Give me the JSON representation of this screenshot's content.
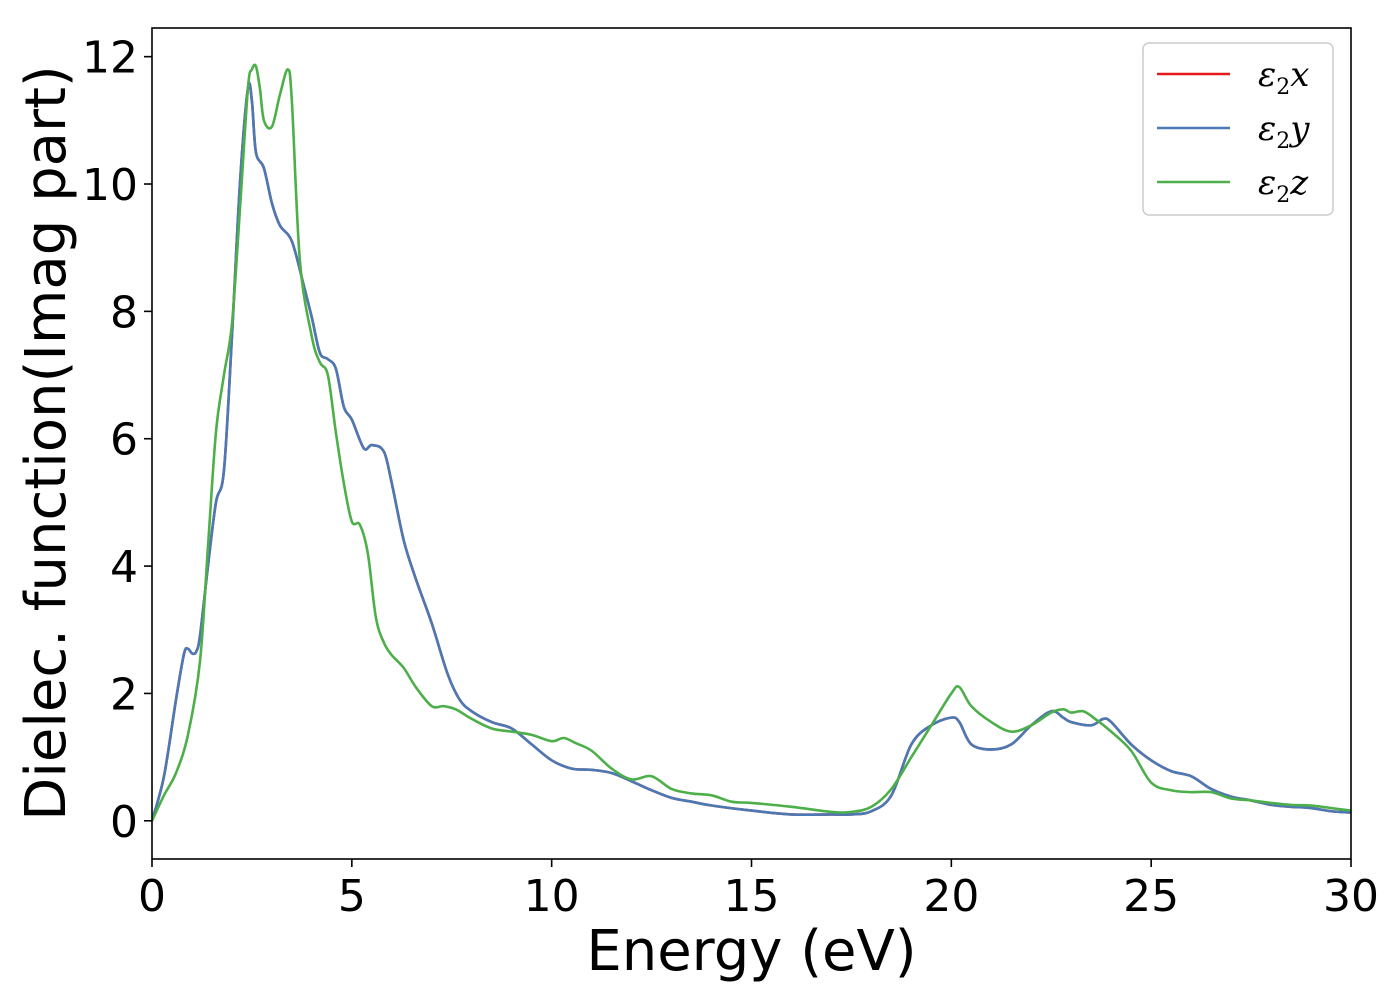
{
  "chart_data": {
    "type": "line",
    "title": "",
    "xlabel": "Energy (eV)",
    "ylabel": "Dielec. function(Imag part)",
    "xlim": [
      0,
      30
    ],
    "ylim": [
      -0.6,
      12.45
    ],
    "xticks": [
      0,
      5,
      10,
      15,
      20,
      25,
      30
    ],
    "yticks": [
      0,
      2,
      4,
      6,
      8,
      10,
      12
    ],
    "grid": false,
    "legend_position": "top-right",
    "series": [
      {
        "name": "ε2x",
        "legend_base": "ε",
        "legend_sub": "2",
        "legend_var": "x",
        "color": "#e41a1c",
        "x": [
          0,
          0.3,
          0.6,
          0.8,
          0.9,
          1.0,
          1.1,
          1.2,
          1.4,
          1.6,
          1.8,
          2.0,
          2.2,
          2.4,
          2.5,
          2.6,
          2.8,
          3.0,
          3.2,
          3.5,
          3.8,
          4.0,
          4.2,
          4.4,
          4.6,
          4.8,
          5.0,
          5.3,
          5.5,
          5.8,
          6.0,
          6.3,
          6.6,
          7.0,
          7.4,
          7.7,
          8.0,
          8.5,
          9.0,
          9.5,
          10.0,
          10.5,
          11.0,
          11.5,
          12.0,
          12.5,
          13.0,
          13.5,
          14.0,
          15.0,
          16.0,
          17.0,
          17.5,
          18.0,
          18.5,
          19.0,
          19.5,
          20.0,
          20.2,
          20.5,
          21.0,
          21.5,
          22.0,
          22.5,
          22.8,
          23.0,
          23.5,
          23.8,
          24.0,
          24.5,
          25.0,
          25.5,
          26.0,
          26.5,
          27.0,
          27.5,
          28.0,
          28.5,
          29.0,
          29.5,
          30.0
        ],
        "values": [
          0,
          0.7,
          1.9,
          2.62,
          2.7,
          2.63,
          2.65,
          2.9,
          4.0,
          5.0,
          5.5,
          7.6,
          10.0,
          11.5,
          11.3,
          10.5,
          10.25,
          9.7,
          9.35,
          9.1,
          8.4,
          7.9,
          7.35,
          7.25,
          7.1,
          6.5,
          6.3,
          5.85,
          5.9,
          5.8,
          5.3,
          4.4,
          3.8,
          3.1,
          2.3,
          1.9,
          1.72,
          1.55,
          1.45,
          1.2,
          0.95,
          0.82,
          0.8,
          0.75,
          0.62,
          0.48,
          0.36,
          0.3,
          0.24,
          0.16,
          0.1,
          0.1,
          0.1,
          0.15,
          0.4,
          1.2,
          1.5,
          1.62,
          1.55,
          1.2,
          1.12,
          1.2,
          1.5,
          1.72,
          1.62,
          1.55,
          1.5,
          1.6,
          1.55,
          1.2,
          0.95,
          0.78,
          0.7,
          0.5,
          0.38,
          0.32,
          0.25,
          0.22,
          0.2,
          0.15,
          0.13
        ]
      },
      {
        "name": "ε2y",
        "legend_base": "ε",
        "legend_sub": "2",
        "legend_var": "y",
        "color": "#4a7ab5",
        "x": [
          0,
          0.3,
          0.6,
          0.8,
          0.9,
          1.0,
          1.1,
          1.2,
          1.4,
          1.6,
          1.8,
          2.0,
          2.2,
          2.4,
          2.5,
          2.6,
          2.8,
          3.0,
          3.2,
          3.5,
          3.8,
          4.0,
          4.2,
          4.4,
          4.6,
          4.8,
          5.0,
          5.3,
          5.5,
          5.8,
          6.0,
          6.3,
          6.6,
          7.0,
          7.4,
          7.7,
          8.0,
          8.5,
          9.0,
          9.5,
          10.0,
          10.5,
          11.0,
          11.5,
          12.0,
          12.5,
          13.0,
          13.5,
          14.0,
          15.0,
          16.0,
          17.0,
          17.5,
          18.0,
          18.5,
          19.0,
          19.5,
          20.0,
          20.2,
          20.5,
          21.0,
          21.5,
          22.0,
          22.5,
          22.8,
          23.0,
          23.5,
          23.8,
          24.0,
          24.5,
          25.0,
          25.5,
          26.0,
          26.5,
          27.0,
          27.5,
          28.0,
          28.5,
          29.0,
          29.5,
          30.0
        ],
        "values": [
          0,
          0.7,
          1.9,
          2.62,
          2.7,
          2.63,
          2.65,
          2.9,
          4.0,
          5.0,
          5.5,
          7.6,
          10.0,
          11.5,
          11.3,
          10.5,
          10.25,
          9.7,
          9.35,
          9.1,
          8.4,
          7.9,
          7.35,
          7.25,
          7.1,
          6.5,
          6.3,
          5.85,
          5.9,
          5.8,
          5.3,
          4.4,
          3.8,
          3.1,
          2.3,
          1.9,
          1.72,
          1.55,
          1.45,
          1.2,
          0.95,
          0.82,
          0.8,
          0.75,
          0.62,
          0.48,
          0.36,
          0.3,
          0.24,
          0.16,
          0.1,
          0.1,
          0.1,
          0.15,
          0.4,
          1.2,
          1.5,
          1.62,
          1.55,
          1.2,
          1.12,
          1.2,
          1.5,
          1.72,
          1.62,
          1.55,
          1.5,
          1.6,
          1.55,
          1.2,
          0.95,
          0.78,
          0.7,
          0.5,
          0.38,
          0.32,
          0.25,
          0.22,
          0.2,
          0.15,
          0.13
        ]
      },
      {
        "name": "ε2z",
        "legend_base": "ε",
        "legend_sub": "2",
        "legend_var": "z",
        "color": "#4daf4a",
        "x": [
          0,
          0.3,
          0.6,
          0.9,
          1.2,
          1.4,
          1.6,
          1.8,
          2.0,
          2.2,
          2.4,
          2.5,
          2.6,
          2.7,
          2.8,
          3.0,
          3.2,
          3.4,
          3.5,
          3.7,
          4.0,
          4.2,
          4.4,
          4.6,
          4.8,
          5.0,
          5.2,
          5.4,
          5.6,
          5.8,
          6.0,
          6.3,
          6.6,
          7.0,
          7.3,
          7.6,
          8.0,
          8.5,
          9.0,
          9.5,
          10.0,
          10.3,
          10.6,
          11.0,
          11.5,
          12.0,
          12.5,
          13.0,
          13.5,
          14.0,
          14.5,
          15.0,
          16.0,
          17.0,
          17.5,
          18.0,
          18.5,
          19.0,
          19.5,
          20.0,
          20.2,
          20.5,
          21.0,
          21.5,
          22.0,
          22.5,
          22.8,
          23.0,
          23.3,
          23.6,
          24.0,
          24.5,
          25.0,
          25.5,
          26.0,
          26.5,
          27.0,
          27.5,
          28.0,
          28.5,
          29.0,
          29.5,
          30.0
        ],
        "values": [
          0,
          0.4,
          0.75,
          1.35,
          2.5,
          4.3,
          6.1,
          7.0,
          7.8,
          9.6,
          11.5,
          11.8,
          11.85,
          11.5,
          11.0,
          10.9,
          11.4,
          11.8,
          11.3,
          8.8,
          7.6,
          7.2,
          7.0,
          6.1,
          5.3,
          4.7,
          4.65,
          4.2,
          3.2,
          2.8,
          2.6,
          2.4,
          2.1,
          1.8,
          1.8,
          1.75,
          1.6,
          1.45,
          1.4,
          1.35,
          1.25,
          1.3,
          1.22,
          1.1,
          0.82,
          0.65,
          0.7,
          0.5,
          0.43,
          0.4,
          0.3,
          0.28,
          0.22,
          0.14,
          0.14,
          0.22,
          0.5,
          1.0,
          1.5,
          2.0,
          2.1,
          1.8,
          1.55,
          1.4,
          1.5,
          1.7,
          1.75,
          1.7,
          1.72,
          1.6,
          1.4,
          1.1,
          0.6,
          0.48,
          0.45,
          0.45,
          0.35,
          0.32,
          0.28,
          0.25,
          0.24,
          0.2,
          0.16
        ]
      }
    ]
  }
}
